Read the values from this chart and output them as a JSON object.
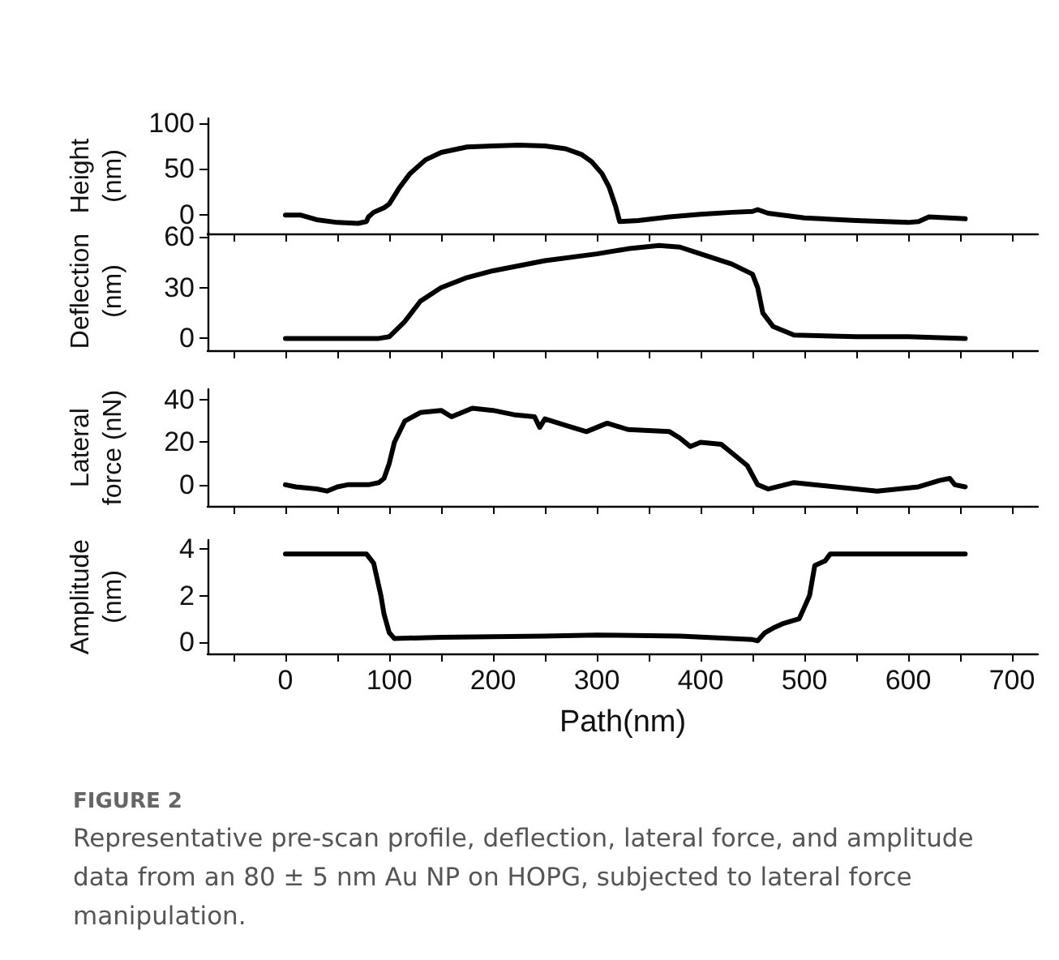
{
  "chart_data": [
    {
      "type": "line",
      "ylabel": "Height\n(nm)",
      "tick_labels": "y",
      "xlim": [
        -75,
        725
      ],
      "xticks": [
        {
          "value": -50,
          "label": null
        },
        0,
        {
          "value": 50,
          "label": null
        },
        100,
        {
          "value": 150,
          "label": null
        },
        200,
        {
          "value": 250,
          "label": null
        },
        300,
        {
          "value": 350,
          "label": null
        },
        400,
        {
          "value": 450,
          "label": null
        },
        500,
        {
          "value": 550,
          "label": null
        },
        600,
        {
          "value": 650,
          "label": null
        },
        700
      ],
      "ylim": [
        -20,
        105
      ],
      "yticks": [
        0,
        50,
        100
      ],
      "series": [
        {
          "color": "#000000",
          "x": [
            0,
            15,
            30,
            50,
            70,
            78,
            80,
            85,
            95,
            100,
            110,
            120,
            135,
            150,
            175,
            200,
            225,
            250,
            270,
            285,
            295,
            305,
            312,
            318,
            322,
            340,
            370,
            400,
            430,
            450,
            455,
            465,
            500,
            550,
            600,
            610,
            620,
            655
          ],
          "values": [
            0,
            0,
            -5,
            -8,
            -9,
            -7,
            -2,
            3,
            8,
            12,
            30,
            45,
            60,
            68,
            74,
            75,
            76,
            75,
            72,
            66,
            58,
            45,
            30,
            10,
            -7,
            -6,
            -2,
            1,
            3,
            4,
            6,
            2,
            -3,
            -6,
            -8,
            -7,
            -2,
            -4
          ]
        }
      ]
    },
    {
      "type": "line",
      "ylabel": "Deflection\n(nm)",
      "tick_labels": "y",
      "xlim": [
        -75,
        725
      ],
      "xticks": [
        {
          "value": -50,
          "label": null
        },
        0,
        {
          "value": 50,
          "label": null
        },
        100,
        {
          "value": 150,
          "label": null
        },
        200,
        {
          "value": 250,
          "label": null
        },
        300,
        {
          "value": 350,
          "label": null
        },
        400,
        {
          "value": 450,
          "label": null
        },
        500,
        {
          "value": 550,
          "label": null
        },
        600,
        {
          "value": 650,
          "label": null
        },
        700
      ],
      "ylim": [
        -7,
        63
      ],
      "yticks": [
        0,
        30,
        60
      ],
      "series": [
        {
          "color": "#000000",
          "x": [
            0,
            50,
            90,
            100,
            115,
            130,
            150,
            175,
            200,
            250,
            300,
            330,
            360,
            380,
            400,
            430,
            450,
            455,
            460,
            470,
            490,
            550,
            600,
            655
          ],
          "values": [
            0,
            0,
            0,
            1,
            10,
            22,
            30,
            36,
            40,
            46,
            50,
            53,
            55,
            54,
            50,
            44,
            38,
            30,
            15,
            7,
            2,
            1,
            1,
            0
          ]
        }
      ]
    },
    {
      "type": "line",
      "ylabel": "Lateral\nforce (nN)",
      "tick_labels": "y",
      "xlim": [
        -75,
        725
      ],
      "xticks": [
        {
          "value": -50,
          "label": null
        },
        0,
        {
          "value": 50,
          "label": null
        },
        100,
        {
          "value": 150,
          "label": null
        },
        200,
        {
          "value": 250,
          "label": null
        },
        300,
        {
          "value": 350,
          "label": null
        },
        400,
        {
          "value": 450,
          "label": null
        },
        500,
        {
          "value": 550,
          "label": null
        },
        600,
        {
          "value": 650,
          "label": null
        },
        700
      ],
      "ylim": [
        -10,
        45
      ],
      "yticks": [
        0,
        20,
        40
      ],
      "series": [
        {
          "color": "#000000",
          "x": [
            0,
            10,
            30,
            40,
            50,
            60,
            80,
            90,
            95,
            100,
            105,
            115,
            130,
            150,
            160,
            180,
            200,
            220,
            240,
            245,
            250,
            270,
            290,
            310,
            330,
            370,
            380,
            390,
            400,
            420,
            430,
            445,
            455,
            465,
            490,
            530,
            570,
            610,
            630,
            640,
            645,
            655
          ],
          "values": [
            0,
            -1,
            -2,
            -3,
            -1,
            0,
            0,
            1,
            3,
            10,
            20,
            30,
            34,
            35,
            32,
            36,
            35,
            33,
            32,
            27,
            31,
            28,
            25,
            29,
            26,
            25,
            22,
            18,
            20,
            19,
            15,
            9,
            0,
            -2,
            1,
            -1,
            -3,
            -1,
            2,
            3,
            0,
            -1
          ]
        }
      ]
    },
    {
      "type": "line",
      "ylabel": "Amplitude\n(nm)",
      "xlabel": "Path(nm)",
      "xlim": [
        -75,
        725
      ],
      "xticks": [
        {
          "value": -50,
          "label": null
        },
        0,
        {
          "value": 50,
          "label": null
        },
        100,
        {
          "value": 150,
          "label": null
        },
        200,
        {
          "value": 250,
          "label": null
        },
        300,
        {
          "value": 350,
          "label": null
        },
        400,
        {
          "value": 450,
          "label": null
        },
        500,
        {
          "value": 550,
          "label": null
        },
        600,
        {
          "value": 650,
          "label": null
        },
        700
      ],
      "ylim": [
        -0.5,
        4.4
      ],
      "yticks": [
        0,
        2,
        4
      ],
      "annotations": [
        "FIGURE 2",
        "Representative pre-scan profile, deflection, lateral force, and amplitude data from an 80 ± 5 nm Au NP on HOPG, subjected to lateral force manipulation."
      ],
      "series": [
        {
          "color": "#000000",
          "x": [
            0,
            70,
            78,
            85,
            88,
            92,
            95,
            100,
            105,
            150,
            250,
            300,
            380,
            450,
            455,
            462,
            470,
            480,
            495,
            500,
            505,
            510,
            520,
            525,
            600,
            655
          ],
          "values": [
            3.8,
            3.8,
            3.8,
            3.4,
            2.8,
            2.0,
            1.2,
            0.4,
            0.15,
            0.2,
            0.25,
            0.3,
            0.25,
            0.1,
            0.05,
            0.4,
            0.6,
            0.8,
            1.0,
            1.5,
            2.0,
            3.3,
            3.5,
            3.8,
            3.8,
            3.8
          ]
        }
      ]
    }
  ]
}
